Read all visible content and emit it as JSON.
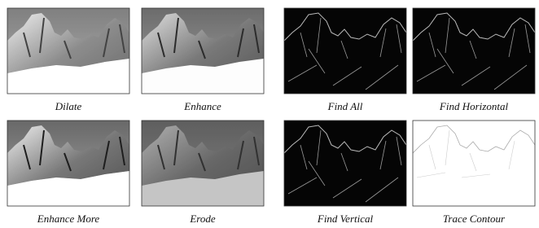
{
  "captions": [
    "Dilate",
    "Enhance",
    "Find All",
    "Find Horizontal",
    "Enhance More",
    "Erode",
    "Find Vertical",
    "Trace Contour"
  ]
}
